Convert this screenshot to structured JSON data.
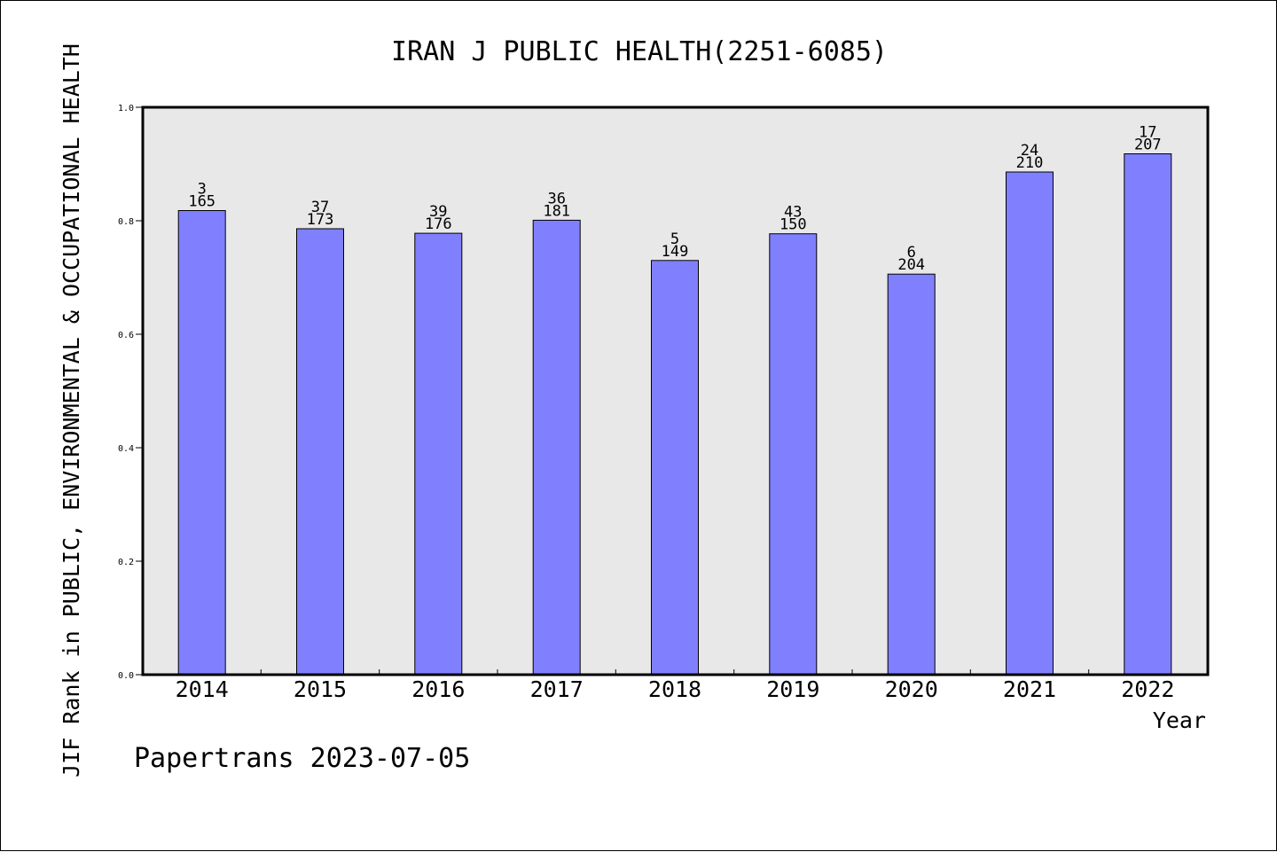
{
  "chart_data": {
    "type": "bar",
    "title": "IRAN J PUBLIC HEALTH(2251-6085)",
    "ylabel": "JIF Rank in PUBLIC, ENVIRONMENTAL & OCCUPATIONAL HEALTH",
    "xlabel": "Year",
    "categories": [
      "2014",
      "2015",
      "2016",
      "2017",
      "2018",
      "2019",
      "2020",
      "2021",
      "2022"
    ],
    "values": [
      0.818,
      0.786,
      0.778,
      0.801,
      0.73,
      0.777,
      0.706,
      0.886,
      0.918
    ],
    "rank_labels": [
      "3",
      "37",
      "39",
      "36",
      "5",
      "43",
      "6",
      "24",
      "17"
    ],
    "total_labels": [
      "165",
      "173",
      "176",
      "181",
      "149",
      "150",
      "204",
      "210",
      "207"
    ],
    "ylim": [
      0,
      1.0
    ],
    "yticks": [
      "0.0",
      "0.2",
      "0.4",
      "0.6",
      "0.8",
      "1.0"
    ],
    "bar_color": "#8080ff",
    "plot_background": "#e8e8e8",
    "grid": false,
    "legend": "none"
  },
  "footer": "Papertrans 2023-07-05"
}
